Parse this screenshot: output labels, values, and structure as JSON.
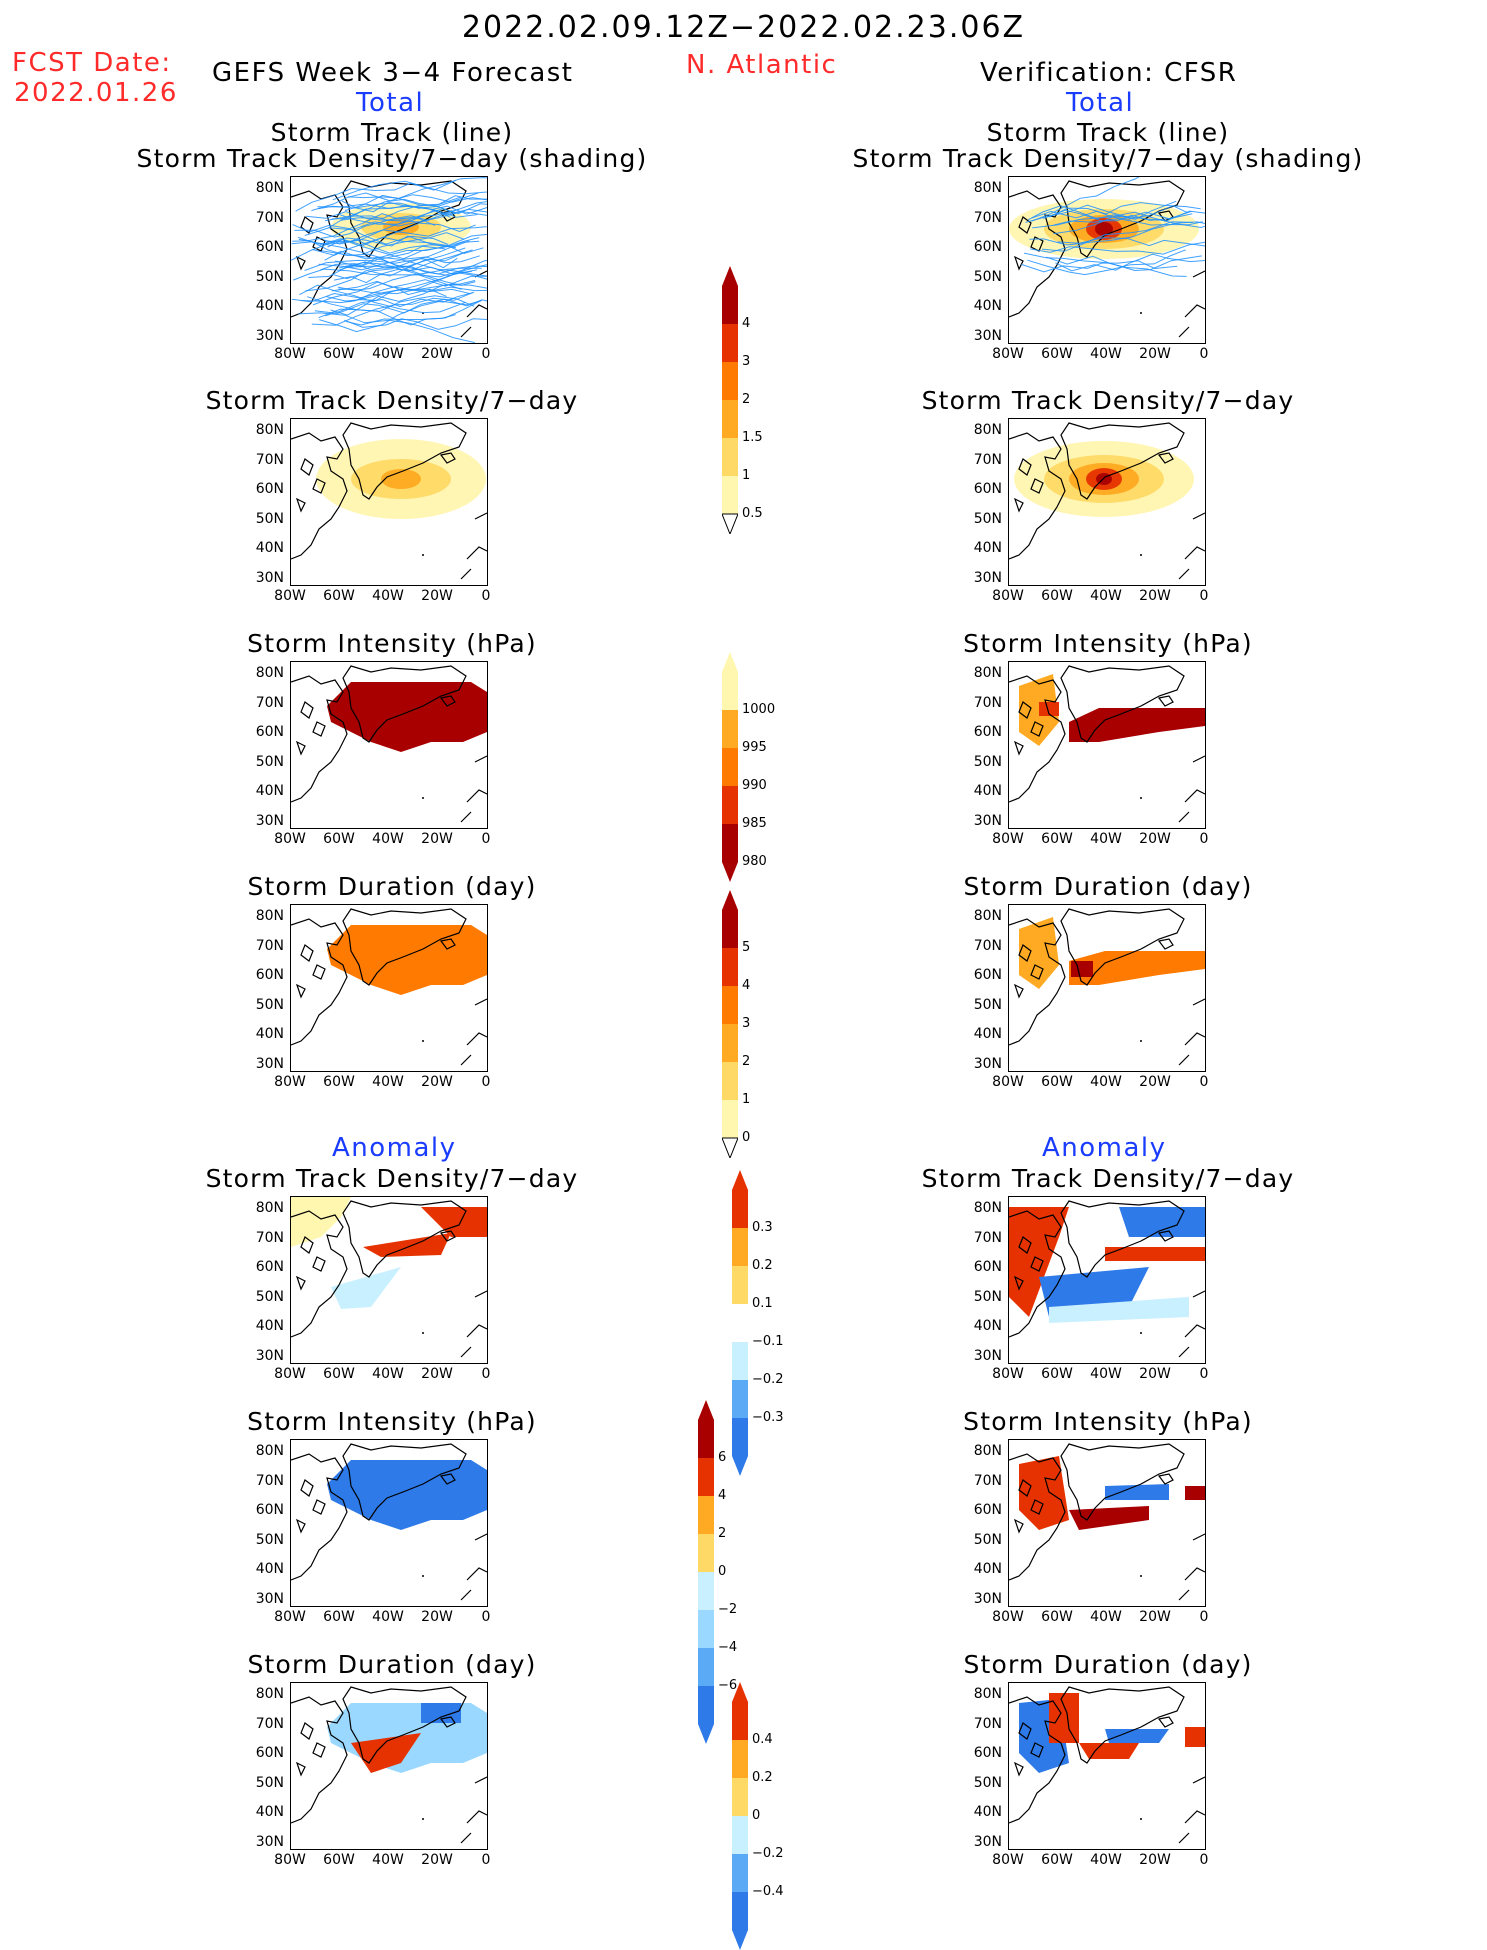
{
  "header": {
    "date_range": "2022.02.09.12Z−2022.02.23.06Z",
    "region": "N. Atlantic",
    "fcst_label": "FCST Date:",
    "fcst_date": "2022.01.26",
    "left_title": "GEFS Week 3−4 Forecast",
    "right_title": "Verification: CFSR"
  },
  "sections": {
    "total": "Total",
    "anomaly": "Anomaly"
  },
  "panel_titles": {
    "track_line": "Storm Track (line)",
    "track_shading": "Storm Track Density/7−day (shading)",
    "density": "Storm Track Density/7−day",
    "intensity": "Storm Intensity (hPa)",
    "duration": "Storm Duration (day)"
  },
  "axes": {
    "lat_ticks": [
      "80N",
      "70N",
      "60N",
      "50N",
      "40N",
      "30N"
    ],
    "lon_ticks": [
      "80W",
      "60W",
      "40W",
      "20W",
      "0"
    ]
  },
  "colorbars": {
    "density": [
      "4",
      "3",
      "2",
      "1.5",
      "1",
      "0.5"
    ],
    "intensity": [
      "1000",
      "995",
      "990",
      "985",
      "980"
    ],
    "duration": [
      "5",
      "4",
      "3",
      "2",
      "1",
      "0"
    ],
    "density_anom": [
      "0.3",
      "0.2",
      "0.1",
      "−0.1",
      "−0.2",
      "−0.3"
    ],
    "intensity_anom": [
      "6",
      "4",
      "2",
      "0",
      "−2",
      "−4",
      "−6"
    ],
    "duration_anom": [
      "0.4",
      "0.2",
      "0",
      "−0.2",
      "−0.4"
    ]
  },
  "colors": {
    "text_red": "#ff2a2a",
    "text_blue": "#1a3cff",
    "track_line": "#1e90ff",
    "warm": [
      "#fff6b0",
      "#ffd966",
      "#ffaa22",
      "#ff7a00",
      "#e63200",
      "#a80000"
    ],
    "cool": [
      "#c8f0ff",
      "#9ad8ff",
      "#5aaaf5",
      "#2e7ae8",
      "#1a55cc"
    ]
  }
}
